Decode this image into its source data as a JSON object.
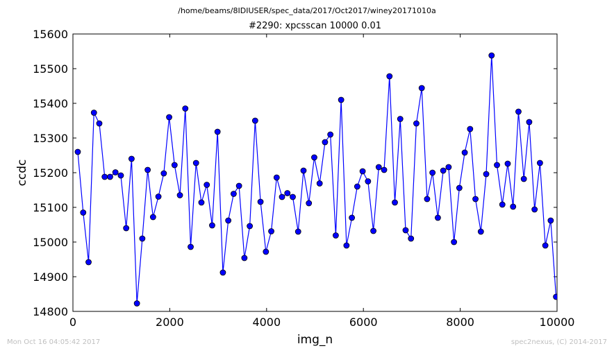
{
  "header": {
    "file_path": "/home/beams/8IDIUSER/spec_data/2017/Oct2017/winey20171010a"
  },
  "footer": {
    "timestamp": "Mon Oct 16 04:05:42 2017",
    "credit": "spec2nexus, (C) 2014-2017"
  },
  "colors": {
    "line": "#0000ff",
    "marker_fill": "#0000ff",
    "marker_edge": "#000000"
  },
  "chart_data": {
    "type": "line",
    "title": "#2290: xpcsscan 10000 0.01",
    "xlabel": "img_n",
    "ylabel": "ccdc",
    "xlim": [
      0,
      10000
    ],
    "ylim": [
      14800,
      15600
    ],
    "xticks": [
      0,
      2000,
      4000,
      6000,
      8000,
      10000
    ],
    "yticks": [
      14800,
      14900,
      15000,
      15100,
      15200,
      15300,
      15400,
      15500,
      15600
    ],
    "grid": false,
    "markers": true,
    "x": [
      100,
      212,
      323,
      434,
      545,
      656,
      767,
      878,
      989,
      1100,
      1211,
      1322,
      1433,
      1544,
      1655,
      1766,
      1877,
      1988,
      2099,
      2210,
      2321,
      2432,
      2543,
      2654,
      2765,
      2876,
      2987,
      3098,
      3209,
      3320,
      3431,
      3542,
      3653,
      3764,
      3875,
      3986,
      4097,
      4208,
      4319,
      4430,
      4541,
      4652,
      4763,
      4874,
      4985,
      5096,
      5207,
      5318,
      5429,
      5540,
      5651,
      5762,
      5873,
      5984,
      6095,
      6206,
      6317,
      6428,
      6539,
      6650,
      6761,
      6872,
      6983,
      7094,
      7205,
      7316,
      7427,
      7538,
      7649,
      7760,
      7871,
      7982,
      8093,
      8204,
      8315,
      8426,
      8537,
      8648,
      8759,
      8870,
      8981,
      9092,
      9203,
      9314,
      9425,
      9536,
      9647,
      9758,
      9869,
      9980
    ],
    "series": [
      {
        "values": [
          15260,
          15085,
          14942,
          15373,
          15342,
          15188,
          15188,
          15201,
          15192,
          15040,
          15240,
          14823,
          15010,
          15208,
          15072,
          15131,
          15198,
          15360,
          15222,
          15135,
          15385,
          14986,
          15228,
          15114,
          15165,
          15048,
          15318,
          14912,
          15062,
          15139,
          15162,
          14954,
          15046,
          15350,
          15116,
          14972,
          15031,
          15186,
          15130,
          15141,
          15130,
          15030,
          15206,
          15112,
          15244,
          15169,
          15288,
          15310,
          15019,
          15410,
          14990,
          15070,
          15160,
          15204,
          15175,
          15032,
          15216,
          15208,
          15478,
          15114,
          15355,
          15034,
          15010,
          15342,
          15444,
          15124,
          15200,
          15070,
          15206,
          15216,
          15000,
          15156,
          15258,
          15326,
          15124,
          15030,
          15196,
          15538,
          15222,
          15108,
          15226,
          15102,
          15376,
          15182,
          15346,
          15094,
          15228,
          14990,
          15062,
          14842
        ]
      }
    ]
  }
}
